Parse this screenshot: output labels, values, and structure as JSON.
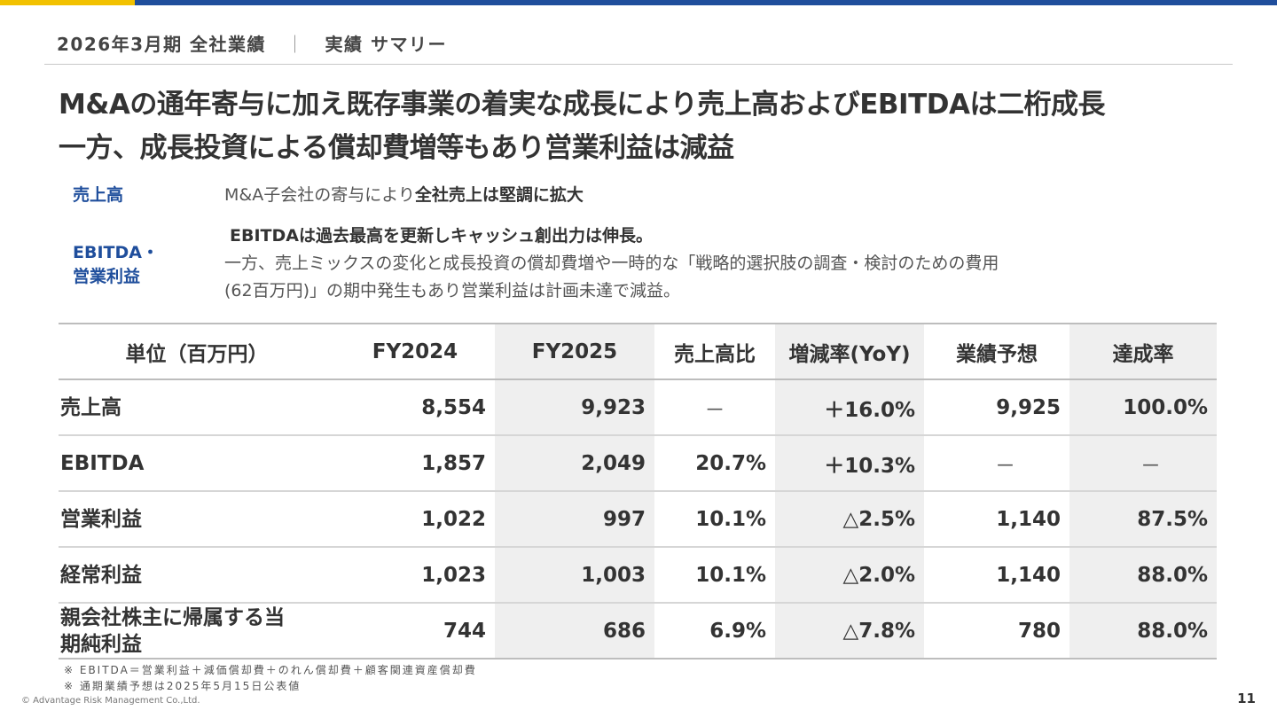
{
  "brand": {
    "primary": "#1f4e9c",
    "accent": "#f2c100"
  },
  "header": {
    "title": "2026年3月期 全社業績",
    "separator": "｜",
    "subtitle": "実績 サマリー"
  },
  "headline": {
    "line1": "M&Aの通年寄与に加え既存事業の着実な成長により売上高およびEBITDAは二桁成長",
    "line2": "一方、成長投資による償却費増等もあり営業利益は減益"
  },
  "summary": {
    "sales_label": "売上高",
    "sales_text_normal": "M&A子会社の寄与により",
    "sales_text_bold": "全社売上は堅調に拡大",
    "ebitda_label_line1": "EBITDA・",
    "ebitda_label_line2": "営業利益",
    "ebitda_text_bold": "EBITDAは過去最高を更新しキャッシュ創出力は伸長。",
    "ebitda_text_line2": "一方、売上ミックスの変化と成長投資の償却費増や一時的な「戦略的選択肢の調査・検討のための費用",
    "ebitda_text_line3": "(62百万円)」の期中発生もあり営業利益は計画未達で減益。"
  },
  "table": {
    "headers": [
      "単位（百万円）",
      "FY2024",
      "FY2025",
      "売上高比",
      "増減率(YoY)",
      "業績予想",
      "達成率"
    ],
    "rows": [
      {
        "label": "売上高",
        "fy2024": "8,554",
        "fy2025": "9,923",
        "ratio": "－",
        "yoy": "＋16.0%",
        "forecast": "9,925",
        "achievement": "100.0%"
      },
      {
        "label": "EBITDA",
        "fy2024": "1,857",
        "fy2025": "2,049",
        "ratio": "20.7%",
        "yoy": "＋10.3%",
        "forecast": "－",
        "achievement": "－"
      },
      {
        "label": "営業利益",
        "fy2024": "1,022",
        "fy2025": "997",
        "ratio": "10.1%",
        "yoy": "△2.5%",
        "forecast": "1,140",
        "achievement": "87.5%"
      },
      {
        "label": "経常利益",
        "fy2024": "1,023",
        "fy2025": "1,003",
        "ratio": "10.1%",
        "yoy": "△2.0%",
        "forecast": "1,140",
        "achievement": "88.0%"
      },
      {
        "label_line1": "親会社株主に帰属する当",
        "label_line2": "期純利益",
        "fy2024": "744",
        "fy2025": "686",
        "ratio": "6.9%",
        "yoy": "△7.8%",
        "forecast": "780",
        "achievement": "88.0%"
      }
    ]
  },
  "footnotes": [
    "※ EBITDA＝営業利益＋減価償却費＋のれん償却費＋顧客関連資産償却費",
    "※ 通期業績予想は2025年5月15日公表値"
  ],
  "footer": {
    "copyright": "© Advantage Risk Management Co.,Ltd.",
    "page_number": "11"
  }
}
